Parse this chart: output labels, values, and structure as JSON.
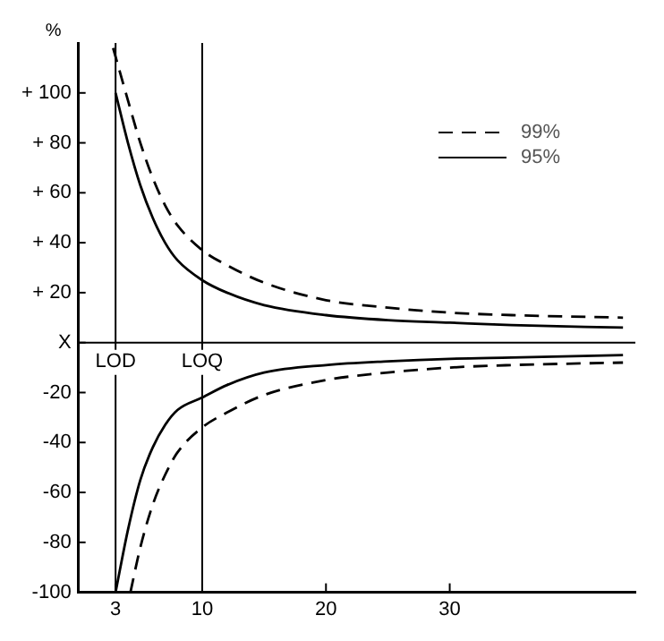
{
  "chart_data": {
    "type": "line",
    "ylabel": "%",
    "legend": "top right",
    "marker": "none",
    "grid": false,
    "xlim": [
      0,
      45
    ],
    "xticks": [
      3,
      10,
      20,
      30
    ],
    "ylim": [
      -100,
      120
    ],
    "yticks": [
      {
        "value": -100,
        "label": "-100"
      },
      {
        "value": -80,
        "label": "-80"
      },
      {
        "value": -60,
        "label": "-60"
      },
      {
        "value": -40,
        "label": "-40"
      },
      {
        "value": -20,
        "label": "-20"
      },
      {
        "value": 0,
        "label": "X"
      },
      {
        "value": 20,
        "label": "+ 20"
      },
      {
        "value": 40,
        "label": "+ 40"
      },
      {
        "value": 60,
        "label": "+ 60"
      },
      {
        "value": 80,
        "label": "+ 80"
      },
      {
        "value": 100,
        "label": "+ 100"
      }
    ],
    "ref_lines": [
      {
        "axis": "x",
        "value": 3,
        "label": "LOD"
      },
      {
        "axis": "x",
        "value": 10,
        "label": "LOQ"
      },
      {
        "axis": "y",
        "value": 0
      }
    ],
    "series": [
      {
        "name": "99%",
        "color": "#000000",
        "line_style": "dashed",
        "x": [
          2.8,
          4,
          5,
          6,
          7,
          8,
          10,
          12,
          15,
          20,
          25,
          30,
          35,
          44
        ],
        "values": [
          118,
          97,
          80,
          66,
          55,
          47,
          37,
          31,
          24,
          17,
          14,
          12,
          11,
          10
        ]
      },
      {
        "name": "95%",
        "color": "#000000",
        "line_style": "solid",
        "x": [
          3,
          4,
          5,
          6,
          7,
          8,
          10,
          12,
          15,
          20,
          25,
          30,
          35,
          44
        ],
        "values": [
          100,
          80,
          63,
          50,
          40,
          33,
          25,
          20,
          15,
          11,
          9,
          8,
          7,
          6
        ]
      },
      {
        "color": "#000000",
        "line_style": "dashed",
        "x": [
          4.2,
          5,
          6,
          7,
          8,
          10,
          12,
          15,
          20,
          25,
          30,
          35,
          44
        ],
        "values": [
          -100,
          -82,
          -65,
          -53,
          -44,
          -34,
          -28,
          -21,
          -15,
          -12,
          -10,
          -9,
          -8
        ]
      },
      {
        "color": "#000000",
        "line_style": "solid",
        "x": [
          3,
          4,
          5,
          6,
          7,
          8,
          10,
          12,
          15,
          20,
          25,
          30,
          35,
          44
        ],
        "values": [
          -100,
          -75,
          -55,
          -42,
          -33,
          -27,
          -22,
          -17,
          -12,
          -9,
          -7.5,
          -6.5,
          -6,
          -5
        ]
      }
    ]
  }
}
